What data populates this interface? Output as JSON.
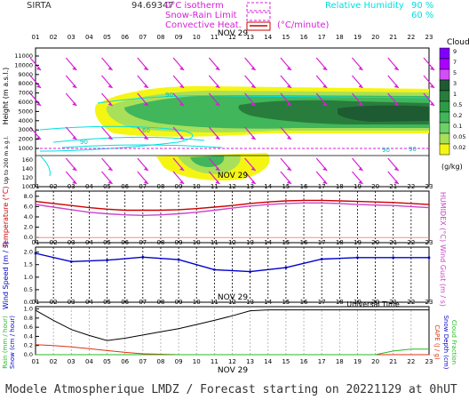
{
  "header": {
    "site": "SIRTA",
    "coord": "94.69347",
    "legend_isotherm": "0°C isotherm",
    "legend_snowrain": "Snow-Rain Limit",
    "legend_convective": "Convective Heat.",
    "legend_convective_unit": "(°C/minute)",
    "legend_rh": "Relative Humidity",
    "legend_rh_90": "90 %",
    "legend_rh_60": "60 %"
  },
  "hours": [
    "01",
    "02",
    "03",
    "04",
    "05",
    "06",
    "07",
    "08",
    "09",
    "10",
    "11",
    "12",
    "13",
    "14",
    "15",
    "16",
    "17",
    "18",
    "19",
    "20",
    "21",
    "22",
    "23"
  ],
  "date_label": "NOV 29",
  "panel1": {
    "ylabel": "Height (m a.s.l.)",
    "ylabel_low": "Up to 200 m a.g.l.",
    "upper_ticks": [
      "11000",
      "10000",
      "9000",
      "8000",
      "7000",
      "6000",
      "5000",
      "4000",
      "3000",
      "2000",
      "1000"
    ],
    "lower_ticks": [
      "160",
      "140",
      "120",
      "100"
    ],
    "rh_labels": [
      "60",
      "90",
      "90",
      "90",
      "90"
    ],
    "colorbar_title": "Clouds",
    "colorbar_ticks": [
      "9",
      "7",
      "5",
      "3",
      "1",
      "0.5",
      "0.2",
      "0.1",
      "0.05",
      "0.02"
    ],
    "colorbar_unit": "(g/kg)",
    "colorbar_colors": [
      "#7f00ff",
      "#ad00ff",
      "#d54df5",
      "#1e5a32",
      "#287d3c",
      "#2e9b46",
      "#41b65a",
      "#6dd068",
      "#a8e05a",
      "#f5f514"
    ]
  },
  "panel2": {
    "ylabel": "Temperature (°C)",
    "ylabel_right": "HUMIDEX (°C)",
    "ticks": [
      "8.0",
      "6.0",
      "4.0",
      "2.0",
      "0.0"
    ]
  },
  "panel3": {
    "ylabel": "Wind Speed (m / s)",
    "ylabel_right": "Wind Gust (m / s)",
    "ticks": [
      "2.0",
      "1.5",
      "1.0",
      "0.5",
      "0.0"
    ]
  },
  "panel4": {
    "ylabel_rain": "Rain (mm / hour)",
    "ylabel_snow": "Snow (cm / hour)",
    "ylabel_capc": "CAPE (J / g)",
    "ylabel_snowdepth": "Snow Depth (cm)",
    "ylabel_cloudfrac": "Cloud Fraction",
    "ticks": [
      "1.0",
      "0.8",
      "0.6",
      "0.4",
      "0.2",
      "0.0"
    ],
    "xlabel": "Universal Time"
  },
  "caption": "Modele Atmospherique LMDZ / Forecast starting on 20221129 at 0hUT",
  "chart_data": [
    {
      "type": "heatmap",
      "title": "",
      "xlabel": "",
      "ylabel": "Height (m a.s.l.)",
      "x": [
        1,
        2,
        3,
        4,
        5,
        6,
        7,
        8,
        9,
        10,
        11,
        12,
        13,
        14,
        15,
        16,
        17,
        18,
        19,
        20,
        21,
        22,
        23
      ],
      "ylim": [
        0,
        11500
      ],
      "description_series": [
        {
          "name": "0°C isotherm",
          "y": [
            1050,
            1050,
            1050,
            1050,
            1050,
            1050,
            1050,
            1050,
            1050,
            1050,
            1050,
            1050,
            1050,
            1050,
            1050,
            1050,
            1050,
            1050,
            1050,
            1050,
            1050,
            1050,
            1050
          ]
        }
      ]
    },
    {
      "type": "line",
      "xlabel": "",
      "ylabel": "Temperature (°C)",
      "ylim": [
        -1,
        9
      ],
      "x": [
        1,
        2,
        3,
        4,
        5,
        6,
        7,
        8,
        9,
        10,
        11,
        12,
        13,
        14,
        15,
        16,
        17,
        18,
        19,
        20,
        21,
        22,
        23
      ],
      "series": [
        {
          "name": "Temperature",
          "color": "#cc0000",
          "values": [
            7.0,
            6.6,
            6.2,
            5.8,
            5.5,
            5.3,
            5.3,
            5.3,
            5.4,
            5.6,
            5.9,
            6.2,
            6.6,
            6.9,
            7.1,
            7.2,
            7.2,
            7.1,
            7.0,
            6.9,
            6.8,
            6.6,
            6.4
          ]
        },
        {
          "name": "HUMIDEX",
          "color": "#cc44cc",
          "values": [
            6.4,
            5.9,
            5.4,
            4.9,
            4.6,
            4.4,
            4.3,
            4.4,
            4.6,
            4.9,
            5.3,
            5.7,
            6.1,
            6.4,
            6.6,
            6.7,
            6.7,
            6.6,
            6.4,
            6.3,
            6.2,
            6.0,
            5.8
          ]
        }
      ]
    },
    {
      "type": "line",
      "xlabel": "",
      "ylabel": "Wind Speed (m / s)",
      "ylim": [
        0,
        2.2
      ],
      "x": [
        1,
        3,
        5,
        7,
        9,
        11,
        13,
        15,
        17,
        19,
        21,
        23
      ],
      "series": [
        {
          "name": "Wind Speed",
          "color": "#0000cc",
          "values": [
            1.95,
            1.62,
            1.68,
            1.8,
            1.7,
            1.3,
            1.22,
            1.38,
            1.72,
            1.78,
            1.78,
            1.78
          ]
        }
      ]
    },
    {
      "type": "line",
      "xlabel": "Universal Time",
      "ylabel": "Rain (mm / hour)",
      "ylim": [
        0,
        1.0
      ],
      "x": [
        1,
        2,
        3,
        4,
        5,
        6,
        7,
        8,
        9,
        10,
        11,
        12,
        13,
        14,
        15,
        16,
        17,
        18,
        19,
        20,
        21,
        22,
        23
      ],
      "series": [
        {
          "name": "CAPE",
          "color": "#000000",
          "values": [
            0.97,
            0.75,
            0.55,
            0.42,
            0.31,
            0.36,
            0.43,
            0.5,
            0.57,
            0.66,
            0.75,
            0.85,
            0.96,
            0.98,
            0.98,
            0.98,
            0.98,
            0.98,
            0.98,
            0.98,
            0.98,
            0.98,
            0.98
          ]
        },
        {
          "name": "Rain",
          "color": "#dd3311",
          "values": [
            0.22,
            0.2,
            0.17,
            0.13,
            0.09,
            0.05,
            0.02,
            0.01,
            0.0,
            0.0,
            0.0,
            0.0,
            0.0,
            0.0,
            0.0,
            0.0,
            0.0,
            0.0,
            0.0,
            0.0,
            0.0,
            0.0,
            0.0
          ]
        },
        {
          "name": "Cloud Fraction",
          "color": "#22bb22",
          "values": [
            0,
            0,
            0,
            0,
            0,
            0,
            0,
            0,
            0,
            0,
            0,
            0,
            0,
            0,
            0,
            0,
            0,
            0,
            0,
            0,
            0.08,
            0.12,
            0.12
          ]
        }
      ]
    }
  ]
}
